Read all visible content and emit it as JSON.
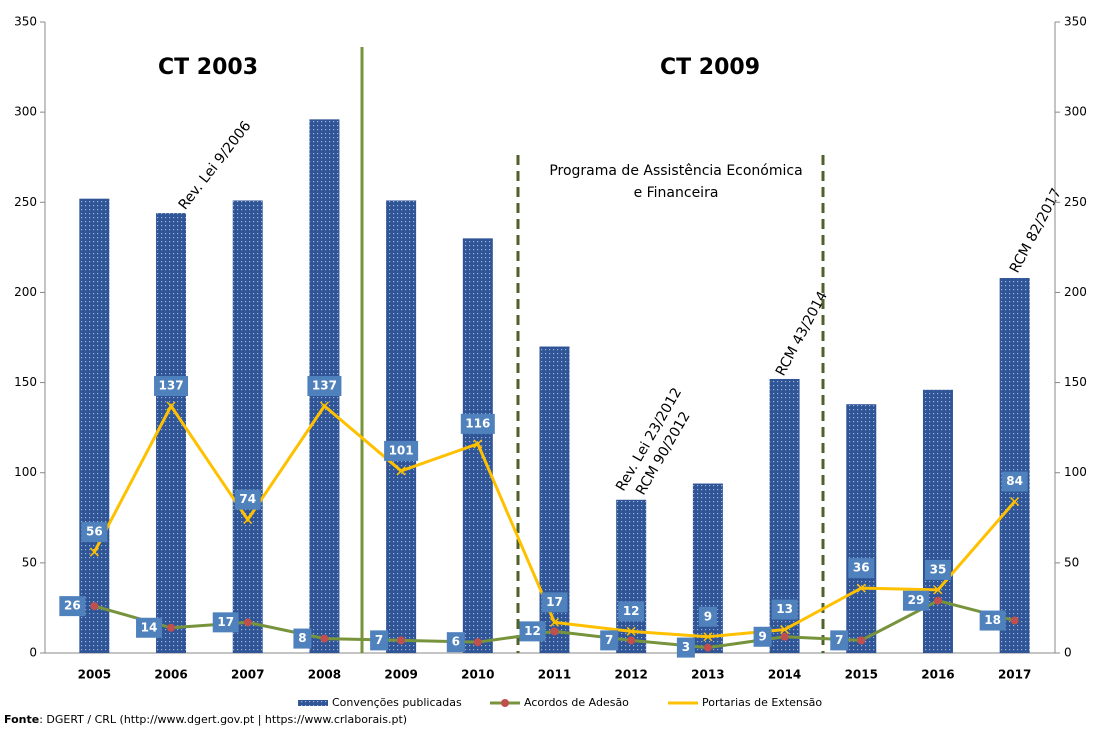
{
  "chart_data": {
    "type": "bar_line",
    "categories": [
      "2005",
      "2006",
      "2007",
      "2008",
      "2009",
      "2010",
      "2011",
      "2012",
      "2013",
      "2014",
      "2015",
      "2016",
      "2017"
    ],
    "series": [
      {
        "name": "Convenções publicadas",
        "color": "#2f5597",
        "type": "bar",
        "values": [
          252,
          244,
          251,
          296,
          251,
          230,
          170,
          85,
          94,
          152,
          138,
          146,
          208
        ]
      },
      {
        "name": "Acordos de Adesão",
        "color": "#77933c",
        "marker_color": "#c0504d",
        "type": "line",
        "values": [
          26,
          14,
          17,
          8,
          7,
          6,
          12,
          7,
          3,
          9,
          7,
          29,
          18
        ]
      },
      {
        "name": "Portarias de Extensão",
        "color": "#ffc000",
        "type": "line",
        "values": [
          56,
          137,
          74,
          137,
          101,
          116,
          17,
          12,
          9,
          13,
          36,
          35,
          84
        ]
      }
    ],
    "ylim": [
      0,
      350
    ],
    "yticks": [
      0,
      50,
      100,
      150,
      200,
      250,
      300,
      350
    ],
    "y2lim": [
      0,
      350
    ],
    "y2ticks": [
      0,
      50,
      100,
      150,
      200,
      250,
      300,
      350
    ],
    "label_color": "#4f81bd",
    "annotations": {
      "ct2003": "CT 2003",
      "ct2009": "CT 2009",
      "rev2006": "Rev. Lei 9/2006",
      "programa1": "Programa  de Assistência Económica",
      "programa2": "e Financeira",
      "rev2012": "Rev. Lei 23/2012",
      "rcm2012": "RCM 90/2012",
      "rcm2014": "RCM 43/2014",
      "rcm2017": "RCM 82/2017"
    },
    "source_label": "Fonte",
    "source_text": ": DGERT / CRL (http://www.dgert.gov.pt  | https://www.crlaborais.pt)"
  }
}
